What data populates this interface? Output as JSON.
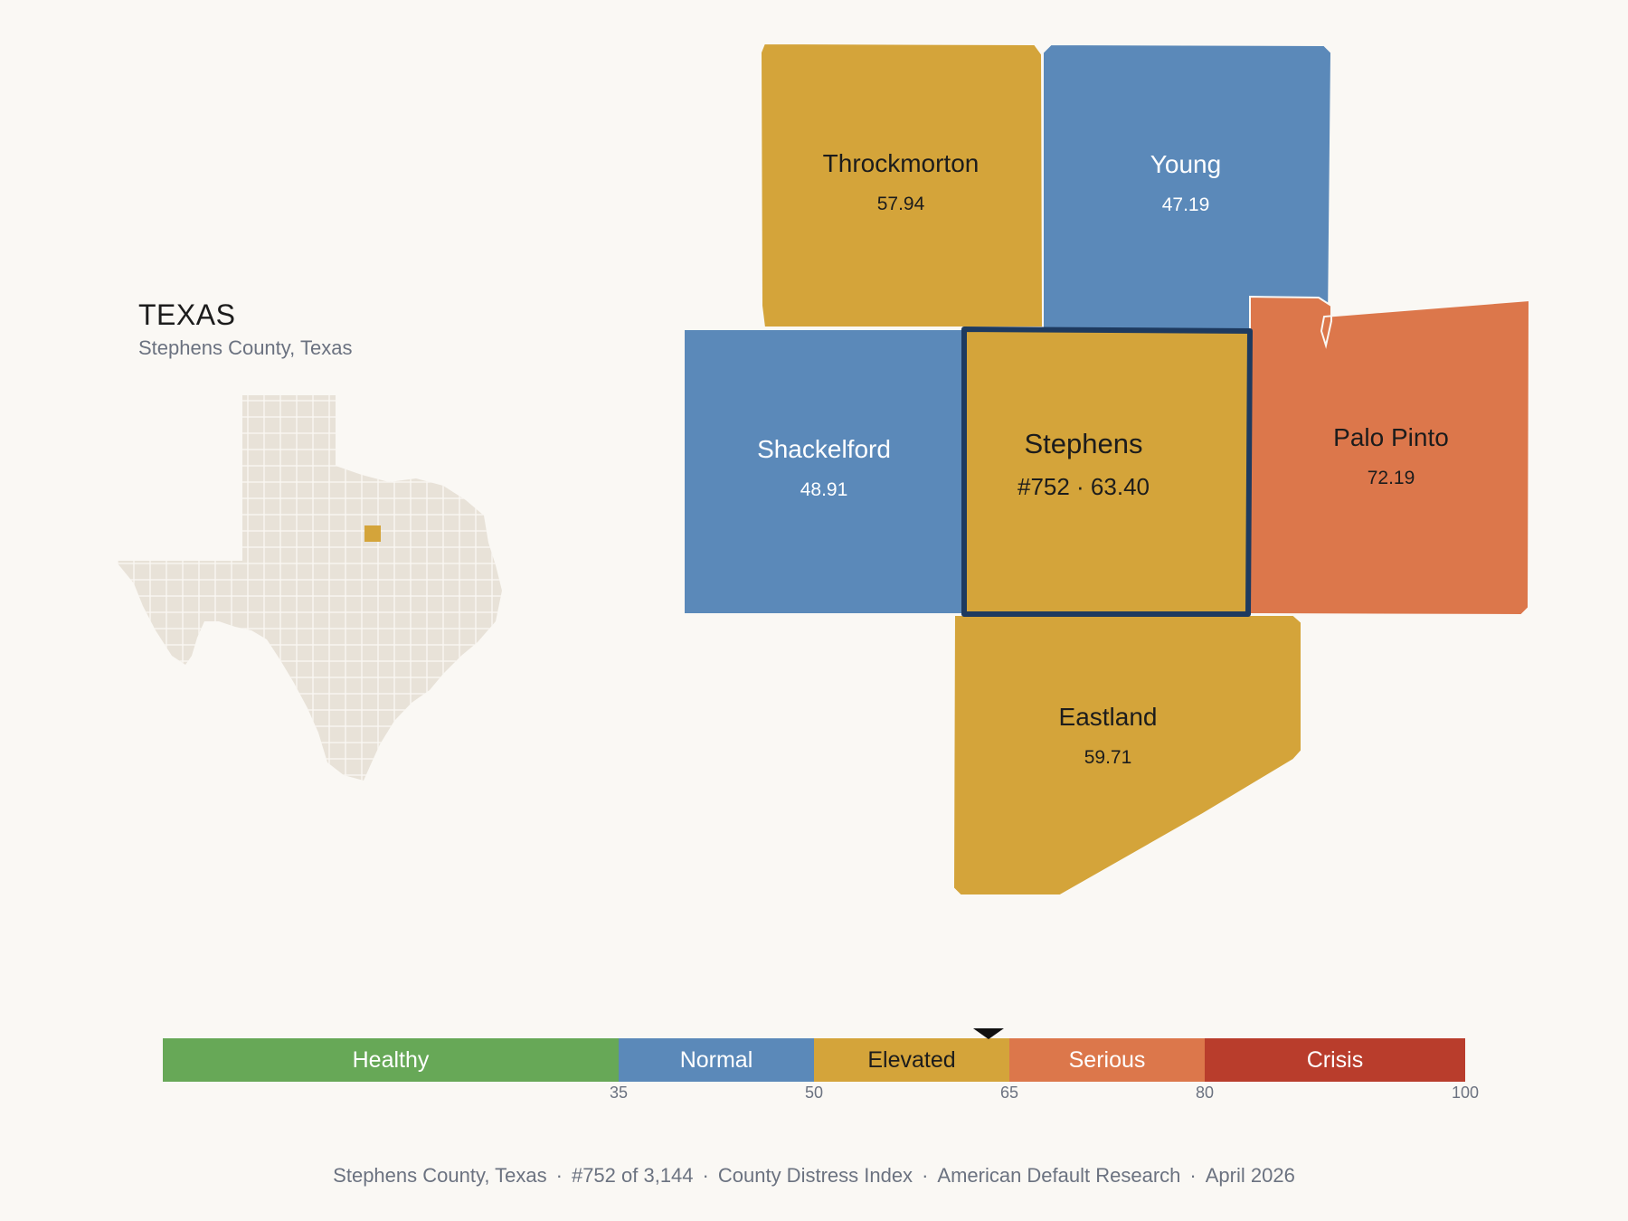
{
  "state": {
    "name": "TEXAS",
    "subtitle": "Stephens County, Texas"
  },
  "colors": {
    "background": "#faf8f4",
    "healthy": "#67a857",
    "normal": "#5b89b9",
    "elevated": "#d4a43a",
    "serious": "#dc774b",
    "crisis": "#b93d2c",
    "texas_fill": "#e8e2d8",
    "highlight_border": "#1e3a5f"
  },
  "counties": [
    {
      "name": "Throckmorton",
      "value": "57.94",
      "tier": "elevated"
    },
    {
      "name": "Young",
      "value": "47.19",
      "tier": "normal"
    },
    {
      "name": "Shackelford",
      "value": "48.91",
      "tier": "normal"
    },
    {
      "name": "Stephens",
      "value": "#752 · 63.40",
      "tier": "elevated",
      "highlighted": true
    },
    {
      "name": "Palo Pinto",
      "value": "72.19",
      "tier": "serious"
    },
    {
      "name": "Eastland",
      "value": "59.71",
      "tier": "elevated"
    }
  ],
  "scale": {
    "min": 0,
    "max": 100,
    "marker_value": 63.4,
    "bands": [
      {
        "label": "Healthy",
        "from": 0,
        "to": 35,
        "tier": "healthy"
      },
      {
        "label": "Normal",
        "from": 35,
        "to": 50,
        "tier": "normal"
      },
      {
        "label": "Elevated",
        "from": 50,
        "to": 65,
        "tier": "elevated"
      },
      {
        "label": "Serious",
        "from": 65,
        "to": 80,
        "tier": "serious"
      },
      {
        "label": "Crisis",
        "from": 80,
        "to": 100,
        "tier": "crisis"
      }
    ],
    "ticks": [
      "35",
      "50",
      "65",
      "80",
      "100"
    ]
  },
  "footer": {
    "items": [
      "Stephens County, Texas",
      "#752 of 3,144",
      "County Distress Index",
      "American Default Research",
      "April 2026"
    ],
    "separator": "·"
  }
}
